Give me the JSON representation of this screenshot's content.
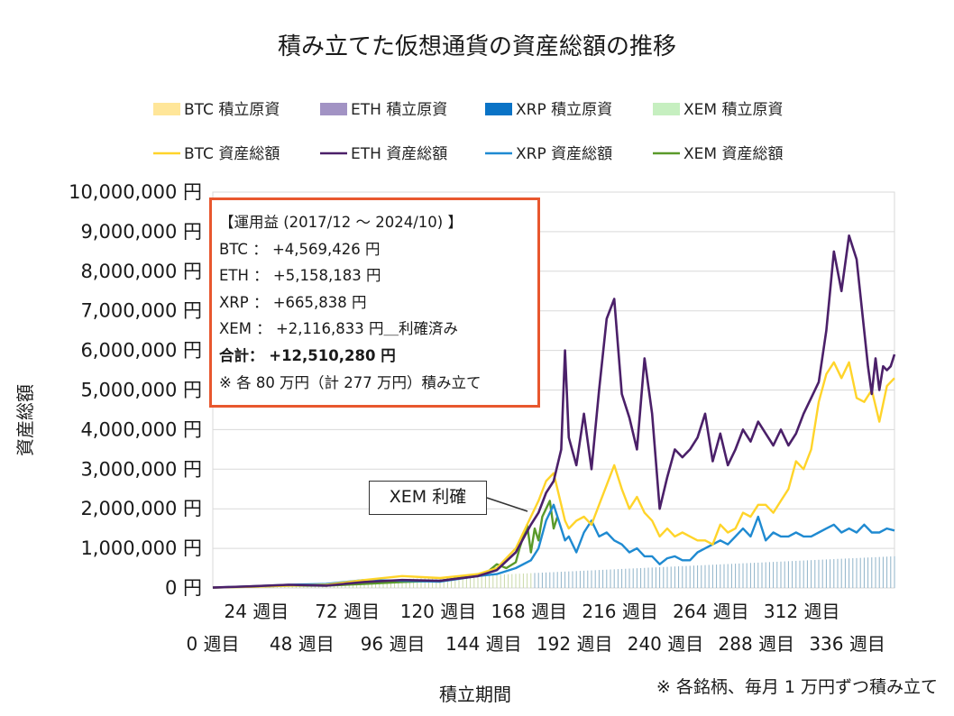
{
  "chart_data": {
    "type": "line",
    "title": "積み立てた仮想通貨の資産総額の推移",
    "xlabel": "積立期間",
    "ylabel": "資産総額",
    "ylim": [
      0,
      10000000
    ],
    "y_ticks": [
      "0 円",
      "1,000,000 円",
      "2,000,000 円",
      "3,000,000 円",
      "4,000,000 円",
      "5,000,000 円",
      "6,000,000 円",
      "7,000,000 円",
      "8,000,000 円",
      "9,000,000 円",
      "10,000,000 円"
    ],
    "x_ticks_upper": [
      "24 週目",
      "72 週目",
      "120 週目",
      "168 週目",
      "216 週目",
      "264 週目",
      "312 週目"
    ],
    "x_ticks_lower": [
      "0 週目",
      "48 週目",
      "96 週目",
      "144 週目",
      "192 週目",
      "240 週目",
      "288 週目",
      "336 週目"
    ],
    "x_max_week": 360,
    "legend": [
      {
        "key": "btc_principal",
        "label": "BTC  積立原資",
        "kind": "area",
        "color": "#ffe699"
      },
      {
        "key": "eth_principal",
        "label": "ETH  積立原資",
        "kind": "area",
        "color": "#a293c4"
      },
      {
        "key": "xrp_principal",
        "label": "XRP  積立原資",
        "kind": "area",
        "color": "#0a73c6"
      },
      {
        "key": "xem_principal",
        "label": "XEM  積立原資",
        "kind": "area",
        "color": "#c6efc0"
      },
      {
        "key": "btc_total",
        "label": "BTC  資産総額",
        "kind": "line",
        "color": "#ffd42a"
      },
      {
        "key": "eth_total",
        "label": "ETH  資産総額",
        "kind": "line",
        "color": "#4b2069"
      },
      {
        "key": "xrp_total",
        "label": "XRP  資産総額",
        "kind": "line",
        "color": "#1f8ad1"
      },
      {
        "key": "xem_total",
        "label": "XEM  資産総額",
        "kind": "line",
        "color": "#5a9a2a"
      }
    ],
    "principal_max": 800000,
    "series": [
      {
        "name": "ETH 資産総額",
        "key": "eth_total",
        "color": "#4b2069",
        "weeks": [
          0,
          20,
          40,
          60,
          80,
          100,
          120,
          140,
          150,
          160,
          168,
          172,
          176,
          180,
          184,
          186,
          188,
          192,
          196,
          200,
          204,
          208,
          212,
          216,
          220,
          224,
          228,
          232,
          236,
          240,
          244,
          248,
          252,
          256,
          260,
          264,
          268,
          272,
          276,
          280,
          284,
          288,
          292,
          296,
          300,
          304,
          308,
          312,
          316,
          320,
          324,
          328,
          332,
          336,
          340,
          344,
          346,
          348,
          350,
          352,
          354,
          356,
          358,
          360
        ],
        "values": [
          10000,
          40000,
          80000,
          60000,
          150000,
          200000,
          180000,
          300000,
          450000,
          900000,
          1600000,
          1900000,
          2400000,
          2700000,
          3500000,
          6000000,
          3800000,
          3100000,
          4400000,
          3000000,
          5000000,
          6800000,
          7300000,
          4900000,
          4300000,
          3500000,
          5800000,
          4400000,
          2000000,
          2800000,
          3500000,
          3300000,
          3500000,
          3800000,
          4400000,
          3200000,
          3900000,
          3100000,
          3500000,
          4000000,
          3700000,
          4200000,
          3900000,
          3600000,
          4000000,
          3600000,
          3900000,
          4400000,
          4800000,
          5200000,
          6500000,
          8500000,
          7500000,
          8900000,
          8300000,
          6500000,
          5600000,
          4900000,
          5800000,
          5000000,
          5600000,
          5500000,
          5600000,
          5900000
        ]
      },
      {
        "name": "BTC 資産総額",
        "key": "btc_total",
        "color": "#ffd42a",
        "weeks": [
          0,
          20,
          40,
          60,
          80,
          100,
          120,
          140,
          150,
          160,
          168,
          172,
          176,
          180,
          184,
          186,
          188,
          192,
          196,
          200,
          204,
          208,
          212,
          216,
          220,
          224,
          228,
          232,
          236,
          240,
          244,
          248,
          252,
          256,
          260,
          264,
          268,
          272,
          276,
          280,
          284,
          288,
          292,
          296,
          300,
          304,
          308,
          312,
          316,
          320,
          324,
          328,
          332,
          336,
          340,
          344,
          348,
          352,
          356,
          360
        ],
        "values": [
          10000,
          30000,
          60000,
          80000,
          200000,
          300000,
          250000,
          350000,
          500000,
          1000000,
          1800000,
          2200000,
          2700000,
          2900000,
          2100000,
          1700000,
          1500000,
          1700000,
          1800000,
          1600000,
          2100000,
          2600000,
          3100000,
          2500000,
          2000000,
          2300000,
          1900000,
          1700000,
          1300000,
          1500000,
          1300000,
          1400000,
          1300000,
          1200000,
          1200000,
          1100000,
          1600000,
          1400000,
          1500000,
          1900000,
          1800000,
          2100000,
          2100000,
          1900000,
          2200000,
          2500000,
          3200000,
          3000000,
          3500000,
          4700000,
          5400000,
          5700000,
          5300000,
          5700000,
          4800000,
          4700000,
          5000000,
          4200000,
          5100000,
          5300000
        ]
      },
      {
        "name": "XRP 資産総額",
        "key": "xrp_total",
        "color": "#1f8ad1",
        "weeks": [
          0,
          20,
          40,
          60,
          80,
          100,
          120,
          140,
          150,
          160,
          168,
          172,
          176,
          180,
          184,
          186,
          188,
          192,
          196,
          200,
          204,
          208,
          212,
          216,
          220,
          224,
          228,
          232,
          236,
          240,
          244,
          248,
          252,
          256,
          260,
          264,
          268,
          272,
          276,
          280,
          284,
          288,
          292,
          296,
          300,
          304,
          308,
          312,
          316,
          320,
          324,
          328,
          332,
          336,
          340,
          344,
          348,
          352,
          356,
          360
        ],
        "values": [
          10000,
          40000,
          80000,
          100000,
          200000,
          180000,
          160000,
          300000,
          350000,
          500000,
          700000,
          1000000,
          1700000,
          2100000,
          1500000,
          1200000,
          1300000,
          900000,
          1400000,
          1700000,
          1300000,
          1400000,
          1200000,
          1100000,
          900000,
          1000000,
          800000,
          800000,
          600000,
          750000,
          800000,
          700000,
          700000,
          900000,
          1000000,
          1100000,
          1200000,
          1100000,
          1300000,
          1500000,
          1300000,
          1800000,
          1200000,
          1400000,
          1300000,
          1300000,
          1400000,
          1300000,
          1300000,
          1400000,
          1500000,
          1600000,
          1400000,
          1500000,
          1400000,
          1600000,
          1400000,
          1400000,
          1500000,
          1450000
        ]
      },
      {
        "name": "XEM 資産総額",
        "key": "xem_total",
        "color": "#5a9a2a",
        "weeks": [
          0,
          20,
          40,
          60,
          80,
          100,
          120,
          130,
          140,
          145,
          150,
          155,
          160,
          162,
          164,
          166,
          168,
          170,
          172,
          174,
          176,
          178,
          180,
          182
        ],
        "values": [
          10000,
          30000,
          60000,
          60000,
          100000,
          150000,
          180000,
          250000,
          300000,
          400000,
          600000,
          500000,
          650000,
          1000000,
          1300000,
          1600000,
          900000,
          1500000,
          1200000,
          1800000,
          2000000,
          2200000,
          1500000,
          1800000
        ]
      }
    ]
  },
  "info_box": {
    "heading": "【運用益 (2017/12 ～ 2024/10) 】",
    "btc": "BTC ： +4,569,426 円",
    "eth": "ETH ： +5,158,183 円",
    "xrp": "XRP ： +665,838 円",
    "xem": "XEM ： +2,116,833 円＿利確済み",
    "total": "合計： +12,510,280 円",
    "note": "※ 各 80 万円（計 277 万円）積み立て"
  },
  "callout": "XEM 利確",
  "footnote": "※ 各銘柄、毎月 1 万円ずつ積み立て"
}
